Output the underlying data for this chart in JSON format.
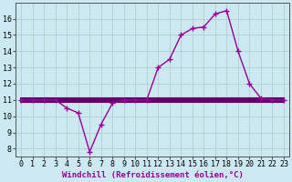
{
  "xlabel": "Windchill (Refroidissement éolien,°C)",
  "background_color": "#cce8f0",
  "line_color": "#990099",
  "flat_line_color": "#660066",
  "grid_color": "#b0c8d0",
  "x_data": [
    0,
    1,
    2,
    3,
    4,
    5,
    6,
    7,
    8,
    9,
    10,
    11,
    12,
    13,
    14,
    15,
    16,
    17,
    18,
    19,
    20,
    21,
    22,
    23
  ],
  "y_main": [
    11,
    11,
    11,
    11,
    10.5,
    10.2,
    7.8,
    9.5,
    10.8,
    11,
    11,
    11,
    13,
    13.5,
    15,
    15.4,
    15.5,
    16.3,
    16.5,
    14.0,
    12.0,
    11.1,
    11,
    11
  ],
  "y_flat1": [
    11,
    11,
    11,
    11,
    11,
    11,
    11,
    11,
    11,
    11,
    11,
    11,
    11,
    11,
    11,
    11,
    11,
    11,
    11,
    11,
    11,
    11,
    11,
    11
  ],
  "y_flat2": [
    10.9,
    10.9,
    10.9,
    10.9,
    10.9,
    10.9,
    10.9,
    10.9,
    10.9,
    10.9,
    10.9,
    10.9,
    10.9,
    10.9,
    10.9,
    10.9,
    10.9,
    10.9,
    10.9,
    10.9,
    10.9,
    10.9,
    10.9,
    10.9
  ],
  "y_flat3": [
    11.1,
    11.1,
    11.1,
    11.1,
    11.1,
    11.1,
    11.1,
    11.1,
    11.1,
    11.1,
    11.1,
    11.1,
    11.1,
    11.1,
    11.1,
    11.1,
    11.1,
    11.1,
    11.1,
    11.1,
    11.1,
    11.1,
    11.1,
    11.1
  ],
  "ylim": [
    7.5,
    17.0
  ],
  "xlim": [
    -0.5,
    23.5
  ],
  "yticks": [
    8,
    9,
    10,
    11,
    12,
    13,
    14,
    15,
    16
  ],
  "xticks": [
    0,
    1,
    2,
    3,
    4,
    5,
    6,
    7,
    8,
    9,
    10,
    11,
    12,
    13,
    14,
    15,
    16,
    17,
    18,
    19,
    20,
    21,
    22,
    23
  ],
  "linewidth": 1.0,
  "flat_linewidth": 1.5,
  "xlabel_fontsize": 6.5,
  "tick_fontsize": 6.0,
  "figwidth": 3.2,
  "figheight": 2.0,
  "dpi": 100
}
